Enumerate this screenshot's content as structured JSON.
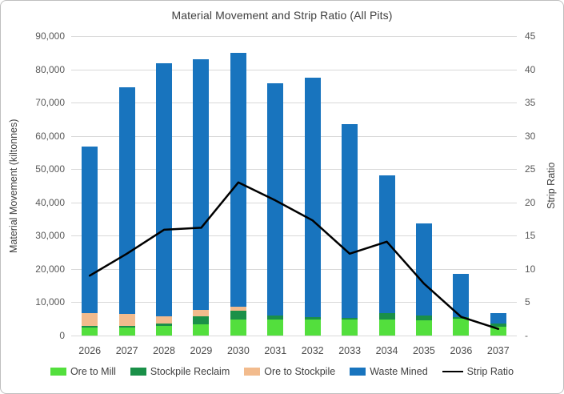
{
  "chart_data": {
    "type": "bar",
    "subtype": "stacked-bars-with-line-overlay",
    "title": "Material Movement and Strip Ratio (All Pits)",
    "categories": [
      "2026",
      "2027",
      "2028",
      "2029",
      "2030",
      "2031",
      "2032",
      "2033",
      "2034",
      "2035",
      "2036",
      "2037"
    ],
    "series": [
      {
        "name": "Ore to Mill",
        "type": "bar",
        "axis": "left",
        "color": "#53df3d",
        "values": [
          2500,
          2500,
          2900,
          3400,
          4800,
          4900,
          4800,
          4900,
          4900,
          4500,
          5000,
          2700
        ]
      },
      {
        "name": "Stockpile Reclaim",
        "type": "bar",
        "axis": "left",
        "color": "#1a9048",
        "values": [
          400,
          400,
          700,
          2400,
          2600,
          1200,
          700,
          300,
          1800,
          1400,
          500,
          800
        ]
      },
      {
        "name": "Ore to Stockpile",
        "type": "bar",
        "axis": "left",
        "color": "#f2bb8d",
        "values": [
          3800,
          3700,
          2200,
          1900,
          1200,
          0,
          0,
          0,
          0,
          0,
          0,
          0
        ]
      },
      {
        "name": "Waste Mined",
        "type": "bar",
        "axis": "left",
        "color": "#1874be",
        "values": [
          50100,
          68000,
          75900,
          75400,
          76400,
          69700,
          72100,
          58300,
          41400,
          27700,
          13000,
          3200
        ]
      },
      {
        "name": "Strip Ratio",
        "type": "line",
        "axis": "right",
        "color": "#000000",
        "values": [
          9.0,
          12.3,
          15.9,
          16.2,
          23.0,
          20.3,
          17.3,
          12.3,
          14.1,
          7.8,
          2.8,
          1.0
        ]
      }
    ],
    "bar_totals": [
      56800,
      74600,
      81700,
      83100,
      85000,
      75800,
      77600,
      63500,
      48100,
      33600,
      18500,
      6700
    ],
    "stacking_order_bottom_to_top": [
      "Ore to Mill",
      "Stockpile Reclaim",
      "Ore to Stockpile",
      "Waste Mined"
    ],
    "left_axis": {
      "title": "Material Movement (kiltonnes)",
      "min": 0,
      "max": 90000,
      "step": 10000,
      "tick_labels": [
        "0",
        "10,000",
        "20,000",
        "30,000",
        "40,000",
        "50,000",
        "60,000",
        "70,000",
        "80,000",
        "90,000"
      ]
    },
    "right_axis": {
      "title": "Strip Ratio",
      "min": 0,
      "max": 45,
      "step": 5,
      "zero_label": "-",
      "tick_labels": [
        "-",
        "5",
        "10",
        "15",
        "20",
        "25",
        "30",
        "35",
        "40",
        "45"
      ]
    },
    "grid": "horizontal-only",
    "gridline_color": "#d9d9d9",
    "legend_position": "bottom",
    "text_colors": {
      "title": "#404040",
      "ticks": "#595959",
      "axis_titles": "#404040"
    }
  }
}
